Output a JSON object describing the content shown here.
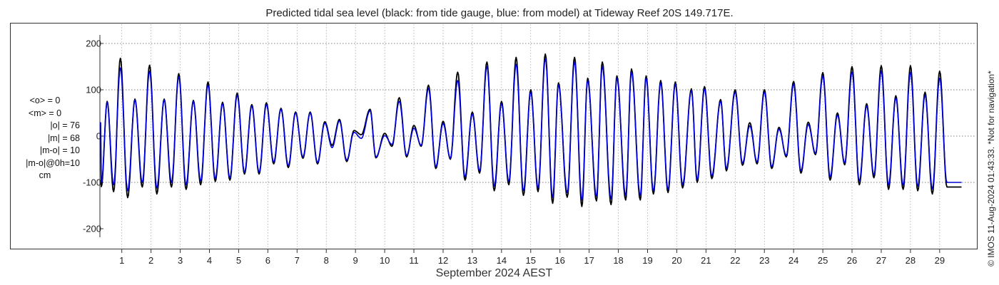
{
  "title": "Predicted tidal sea level (black: from tide gauge, blue: from model) at Tideway Reef 20S 149.717E.",
  "stats": {
    "mean_obs": "<o> = 0",
    "mean_model": "<m> = 0",
    "abs_obs": "|o| = 76",
    "abs_model": "|m| = 68",
    "abs_diff": "|m-o| = 10",
    "abs_diff_0h": "|m-o|@0h=10",
    "unit": "cm"
  },
  "copyright": "© IMOS 11-Aug-2024 01:43:33. *Not for navigation*",
  "colors": {
    "observed": "#000000",
    "model": "#0000dd",
    "grid": "#9a9a9a",
    "axis": "#333333"
  },
  "chart_data": {
    "type": "line",
    "title": "Predicted tidal sea level (black: from tide gauge, blue: from model) at Tideway Reef 20S 149.717E.",
    "xlabel": "September 2024 AEST",
    "ylabel": "",
    "xlim": [
      0.25,
      30.25
    ],
    "ylim": [
      -220,
      220
    ],
    "yticks": [
      -200,
      -100,
      0,
      100,
      200
    ],
    "xticks": [
      1,
      2,
      3,
      4,
      5,
      6,
      7,
      8,
      9,
      10,
      11,
      12,
      13,
      14,
      15,
      16,
      17,
      18,
      19,
      20,
      21,
      22,
      23,
      24,
      25,
      26,
      27,
      28,
      29
    ],
    "grid": true,
    "series": [
      {
        "name": "from tide gauge",
        "color": "#000000",
        "peaks": [
          [
            0.5,
            75
          ],
          [
            0.95,
            168
          ],
          [
            1.45,
            80
          ],
          [
            1.95,
            153
          ],
          [
            2.45,
            80
          ],
          [
            2.95,
            135
          ],
          [
            3.45,
            77
          ],
          [
            3.95,
            117
          ],
          [
            4.45,
            73
          ],
          [
            4.95,
            93
          ],
          [
            5.45,
            68
          ],
          [
            5.95,
            72
          ],
          [
            6.45,
            60
          ],
          [
            6.95,
            52
          ],
          [
            7.45,
            52
          ],
          [
            7.95,
            31
          ],
          [
            8.45,
            36
          ],
          [
            8.95,
            12
          ],
          [
            9.5,
            58
          ],
          [
            10.0,
            6
          ],
          [
            10.5,
            83
          ],
          [
            11.0,
            23
          ],
          [
            11.5,
            110
          ],
          [
            12.0,
            32
          ],
          [
            12.5,
            138
          ],
          [
            13.0,
            52
          ],
          [
            13.5,
            160
          ],
          [
            14.0,
            75
          ],
          [
            14.5,
            170
          ],
          [
            15.0,
            100
          ],
          [
            15.5,
            177
          ],
          [
            15.95,
            115
          ],
          [
            16.5,
            170
          ],
          [
            16.95,
            125
          ],
          [
            17.45,
            160
          ],
          [
            17.95,
            130
          ],
          [
            18.45,
            145
          ],
          [
            18.95,
            130
          ],
          [
            19.45,
            120
          ],
          [
            19.95,
            117
          ],
          [
            20.5,
            102
          ],
          [
            20.95,
            107
          ],
          [
            21.5,
            79
          ],
          [
            22.0,
            100
          ],
          [
            22.5,
            29
          ],
          [
            23.0,
            100
          ],
          [
            23.5,
            19
          ],
          [
            24.0,
            118
          ],
          [
            24.5,
            30
          ],
          [
            25.0,
            137
          ],
          [
            25.5,
            50
          ],
          [
            26.0,
            150
          ],
          [
            26.5,
            70
          ],
          [
            27.0,
            152
          ],
          [
            27.5,
            87
          ],
          [
            28.0,
            152
          ],
          [
            28.5,
            95
          ],
          [
            29.0,
            140
          ]
        ],
        "troughs": [
          [
            0.3,
            -109
          ],
          [
            0.72,
            -120
          ],
          [
            1.2,
            -133
          ],
          [
            1.7,
            -110
          ],
          [
            2.2,
            -125
          ],
          [
            2.7,
            -110
          ],
          [
            3.2,
            -115
          ],
          [
            3.7,
            -105
          ],
          [
            4.2,
            -98
          ],
          [
            4.7,
            -95
          ],
          [
            5.2,
            -82
          ],
          [
            5.7,
            -82
          ],
          [
            6.2,
            -60
          ],
          [
            6.7,
            -68
          ],
          [
            7.2,
            -48
          ],
          [
            7.7,
            -60
          ],
          [
            8.2,
            -20
          ],
          [
            8.7,
            -55
          ],
          [
            9.2,
            3
          ],
          [
            9.7,
            -47
          ],
          [
            10.25,
            -22
          ],
          [
            10.75,
            -45
          ],
          [
            11.25,
            -22
          ],
          [
            11.75,
            -70
          ],
          [
            12.25,
            -50
          ],
          [
            12.75,
            -95
          ],
          [
            13.25,
            -80
          ],
          [
            13.75,
            -118
          ],
          [
            14.25,
            -105
          ],
          [
            14.75,
            -128
          ],
          [
            15.25,
            -120
          ],
          [
            15.75,
            -145
          ],
          [
            16.25,
            -132
          ],
          [
            16.75,
            -152
          ],
          [
            17.25,
            -140
          ],
          [
            17.75,
            -148
          ],
          [
            18.25,
            -138
          ],
          [
            18.75,
            -138
          ],
          [
            19.2,
            -125
          ],
          [
            19.7,
            -122
          ],
          [
            20.2,
            -112
          ],
          [
            20.7,
            -100
          ],
          [
            21.2,
            -92
          ],
          [
            21.7,
            -75
          ],
          [
            22.25,
            -63
          ],
          [
            22.75,
            -60
          ],
          [
            23.25,
            -70
          ],
          [
            23.75,
            -45
          ],
          [
            24.25,
            -80
          ],
          [
            24.75,
            -40
          ],
          [
            25.25,
            -95
          ],
          [
            25.75,
            -62
          ],
          [
            26.25,
            -105
          ],
          [
            26.75,
            -90
          ],
          [
            27.25,
            -115
          ],
          [
            27.75,
            -115
          ],
          [
            28.25,
            -118
          ],
          [
            28.75,
            -125
          ],
          [
            29.25,
            -110
          ],
          [
            29.75,
            -110
          ]
        ]
      },
      {
        "name": "from model",
        "color": "#0000dd",
        "peaks": [
          [
            0.5,
            73
          ],
          [
            0.95,
            147
          ],
          [
            1.45,
            78
          ],
          [
            1.95,
            140
          ],
          [
            2.45,
            78
          ],
          [
            2.95,
            128
          ],
          [
            3.45,
            75
          ],
          [
            3.95,
            110
          ],
          [
            4.45,
            70
          ],
          [
            4.95,
            88
          ],
          [
            5.45,
            65
          ],
          [
            5.95,
            68
          ],
          [
            6.45,
            58
          ],
          [
            6.95,
            50
          ],
          [
            7.45,
            50
          ],
          [
            7.95,
            28
          ],
          [
            8.45,
            33
          ],
          [
            8.95,
            8
          ],
          [
            9.5,
            55
          ],
          [
            10.0,
            1
          ],
          [
            10.5,
            75
          ],
          [
            11.0,
            17
          ],
          [
            11.5,
            103
          ],
          [
            12.0,
            27
          ],
          [
            12.5,
            120
          ],
          [
            13.0,
            48
          ],
          [
            13.5,
            150
          ],
          [
            14.0,
            70
          ],
          [
            14.5,
            155
          ],
          [
            15.0,
            95
          ],
          [
            15.5,
            167
          ],
          [
            15.95,
            110
          ],
          [
            16.5,
            160
          ],
          [
            16.95,
            120
          ],
          [
            17.45,
            150
          ],
          [
            17.95,
            125
          ],
          [
            18.45,
            138
          ],
          [
            18.95,
            125
          ],
          [
            19.45,
            115
          ],
          [
            19.95,
            112
          ],
          [
            20.5,
            98
          ],
          [
            20.95,
            102
          ],
          [
            21.5,
            75
          ],
          [
            22.0,
            95
          ],
          [
            22.5,
            22
          ],
          [
            23.0,
            95
          ],
          [
            23.5,
            15
          ],
          [
            24.0,
            112
          ],
          [
            24.5,
            25
          ],
          [
            25.0,
            130
          ],
          [
            25.5,
            45
          ],
          [
            26.0,
            138
          ],
          [
            26.5,
            65
          ],
          [
            27.0,
            140
          ],
          [
            27.5,
            82
          ],
          [
            28.0,
            138
          ],
          [
            28.5,
            88
          ],
          [
            29.0,
            125
          ]
        ],
        "troughs": [
          [
            0.3,
            -100
          ],
          [
            0.72,
            -105
          ],
          [
            1.2,
            -118
          ],
          [
            1.7,
            -100
          ],
          [
            2.2,
            -112
          ],
          [
            2.7,
            -100
          ],
          [
            3.2,
            -105
          ],
          [
            3.7,
            -97
          ],
          [
            4.2,
            -92
          ],
          [
            4.7,
            -90
          ],
          [
            5.2,
            -78
          ],
          [
            5.7,
            -78
          ],
          [
            6.2,
            -56
          ],
          [
            6.7,
            -64
          ],
          [
            7.2,
            -45
          ],
          [
            7.7,
            -57
          ],
          [
            8.2,
            -25
          ],
          [
            8.7,
            -52
          ],
          [
            9.2,
            -5
          ],
          [
            9.7,
            -45
          ],
          [
            10.25,
            -18
          ],
          [
            10.75,
            -42
          ],
          [
            11.25,
            -20
          ],
          [
            11.75,
            -66
          ],
          [
            12.25,
            -48
          ],
          [
            12.75,
            -88
          ],
          [
            13.25,
            -75
          ],
          [
            13.75,
            -108
          ],
          [
            14.25,
            -98
          ],
          [
            14.75,
            -118
          ],
          [
            15.25,
            -112
          ],
          [
            15.75,
            -132
          ],
          [
            16.25,
            -122
          ],
          [
            16.75,
            -138
          ],
          [
            17.25,
            -130
          ],
          [
            17.75,
            -135
          ],
          [
            18.25,
            -128
          ],
          [
            18.75,
            -128
          ],
          [
            19.2,
            -118
          ],
          [
            19.7,
            -115
          ],
          [
            20.2,
            -105
          ],
          [
            20.7,
            -94
          ],
          [
            21.2,
            -86
          ],
          [
            21.7,
            -70
          ],
          [
            22.25,
            -58
          ],
          [
            22.75,
            -56
          ],
          [
            23.25,
            -66
          ],
          [
            23.75,
            -42
          ],
          [
            24.25,
            -75
          ],
          [
            24.75,
            -37
          ],
          [
            25.25,
            -88
          ],
          [
            25.75,
            -58
          ],
          [
            26.25,
            -97
          ],
          [
            26.75,
            -84
          ],
          [
            27.25,
            -106
          ],
          [
            27.75,
            -106
          ],
          [
            28.25,
            -108
          ],
          [
            28.75,
            -114
          ],
          [
            29.25,
            -100
          ],
          [
            29.75,
            -100
          ]
        ]
      }
    ]
  }
}
